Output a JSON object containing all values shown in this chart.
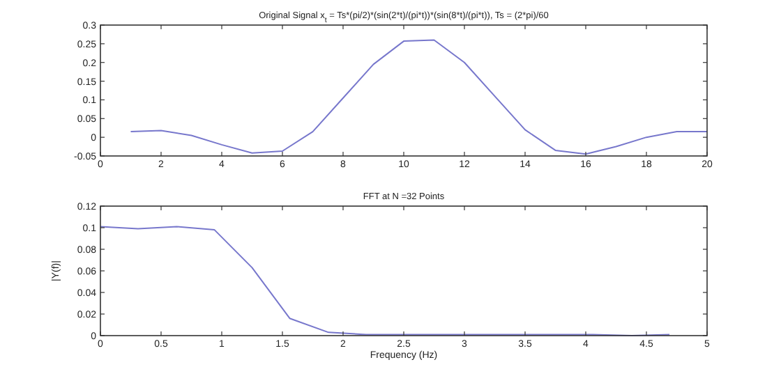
{
  "chart_data": [
    {
      "type": "line",
      "title": "Original Signal x$_{t}$ = Ts*(pi/2)*(sin(2*t)/(pi*t))*(sin(8*t)/(pi*t)), Ts = (2*pi)/60",
      "x": [
        1,
        2,
        3,
        4,
        5,
        6,
        7,
        8,
        9,
        10,
        11,
        12,
        13,
        14,
        15,
        16,
        17,
        18,
        19,
        20
      ],
      "series": [
        {
          "color": "#7777cc",
          "values": [
            0.015,
            0.018,
            0.005,
            -0.02,
            -0.042,
            -0.037,
            0.015,
            0.105,
            0.195,
            0.257,
            0.26,
            0.2,
            0.11,
            0.02,
            -0.035,
            -0.045,
            -0.025,
            0,
            0.015,
            0.015
          ]
        }
      ],
      "xlim": [
        0,
        20
      ],
      "xticks": [
        0,
        2,
        4,
        6,
        8,
        10,
        12,
        14,
        16,
        18,
        20
      ],
      "ylim": [
        -0.05,
        0.3
      ],
      "yticks": [
        -0.05,
        0,
        0.05,
        0.1,
        0.15,
        0.2,
        0.25,
        0.3
      ],
      "grid": false,
      "marker": "none",
      "line_style": "solid"
    },
    {
      "type": "line",
      "title": "FFT at N =32 Points",
      "xlabel": "Frequency (Hz)",
      "ylabel": "|Y(f)|",
      "x": [
        0,
        0.31,
        0.63,
        0.94,
        1.25,
        1.56,
        1.88,
        2.19,
        2.5,
        2.81,
        3.13,
        3.44,
        3.75,
        4.06,
        4.38,
        4.69
      ],
      "series": [
        {
          "color": "#7777cc",
          "values": [
            0.101,
            0.099,
            0.101,
            0.098,
            0.063,
            0.016,
            0.003,
            0.001,
            0.001,
            0.001,
            0.001,
            0.001,
            0.001,
            0.001,
            0,
            0.001
          ]
        }
      ],
      "xlim": [
        0,
        5
      ],
      "xticks": [
        0,
        0.5,
        1,
        1.5,
        2,
        2.5,
        3,
        3.5,
        4,
        4.5,
        5
      ],
      "ylim": [
        0,
        0.12
      ],
      "yticks": [
        0,
        0.02,
        0.04,
        0.06,
        0.08,
        0.1,
        0.12
      ],
      "grid": false,
      "marker": "none",
      "line_style": "solid"
    }
  ]
}
